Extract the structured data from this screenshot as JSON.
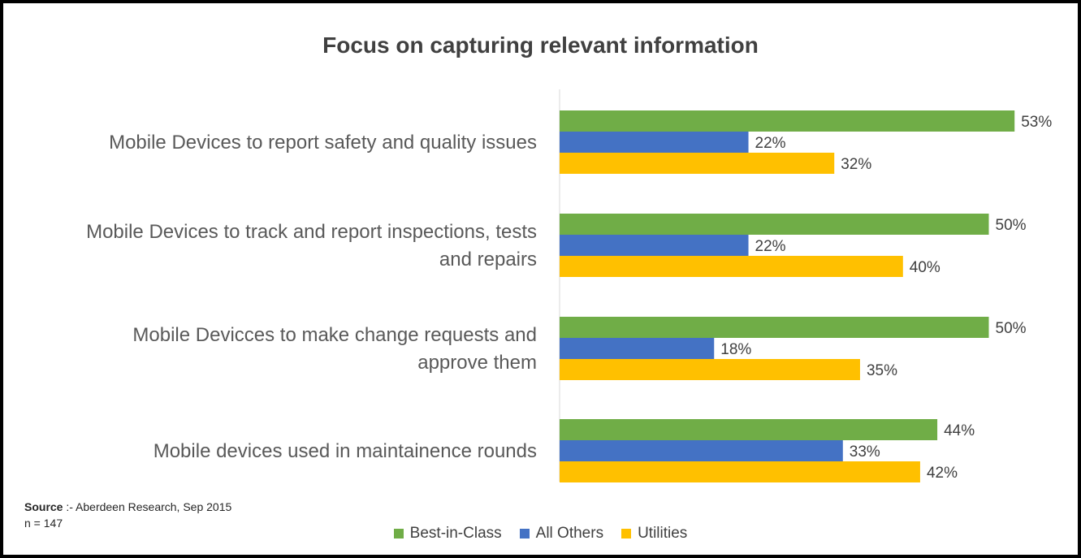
{
  "chart_data": {
    "type": "bar",
    "orientation": "horizontal",
    "title": "Focus on capturing relevant information",
    "categories": [
      [
        "Mobile Devices to report safety and quality issues"
      ],
      [
        "Mobile Devices to track and report inspections, tests",
        "and repairs"
      ],
      [
        "Mobile Devicces to make change requests and",
        "approve them"
      ],
      [
        "Mobile devices used in maintainence rounds"
      ]
    ],
    "series": [
      {
        "name": "Best-in-Class",
        "color": "#70AD47",
        "values": [
          53,
          50,
          50,
          44
        ],
        "labels": [
          "53%",
          "50%",
          "50%",
          "44%"
        ]
      },
      {
        "name": "All Others",
        "color": "#4472C4",
        "values": [
          22,
          22,
          18,
          33
        ],
        "labels": [
          "22%",
          "22%",
          "18%",
          "33%"
        ]
      },
      {
        "name": "Utilities",
        "color": "#FFC000",
        "values": [
          32,
          40,
          35,
          42
        ],
        "labels": [
          "32%",
          "40%",
          "35%",
          "42%"
        ]
      }
    ],
    "xlim": [
      0,
      60
    ],
    "grid": false,
    "legend_position": "bottom"
  },
  "footer": {
    "source_bold": "Source",
    "source_text": " :- Aberdeen Research, Sep 2015",
    "n_text": "n = 147"
  }
}
